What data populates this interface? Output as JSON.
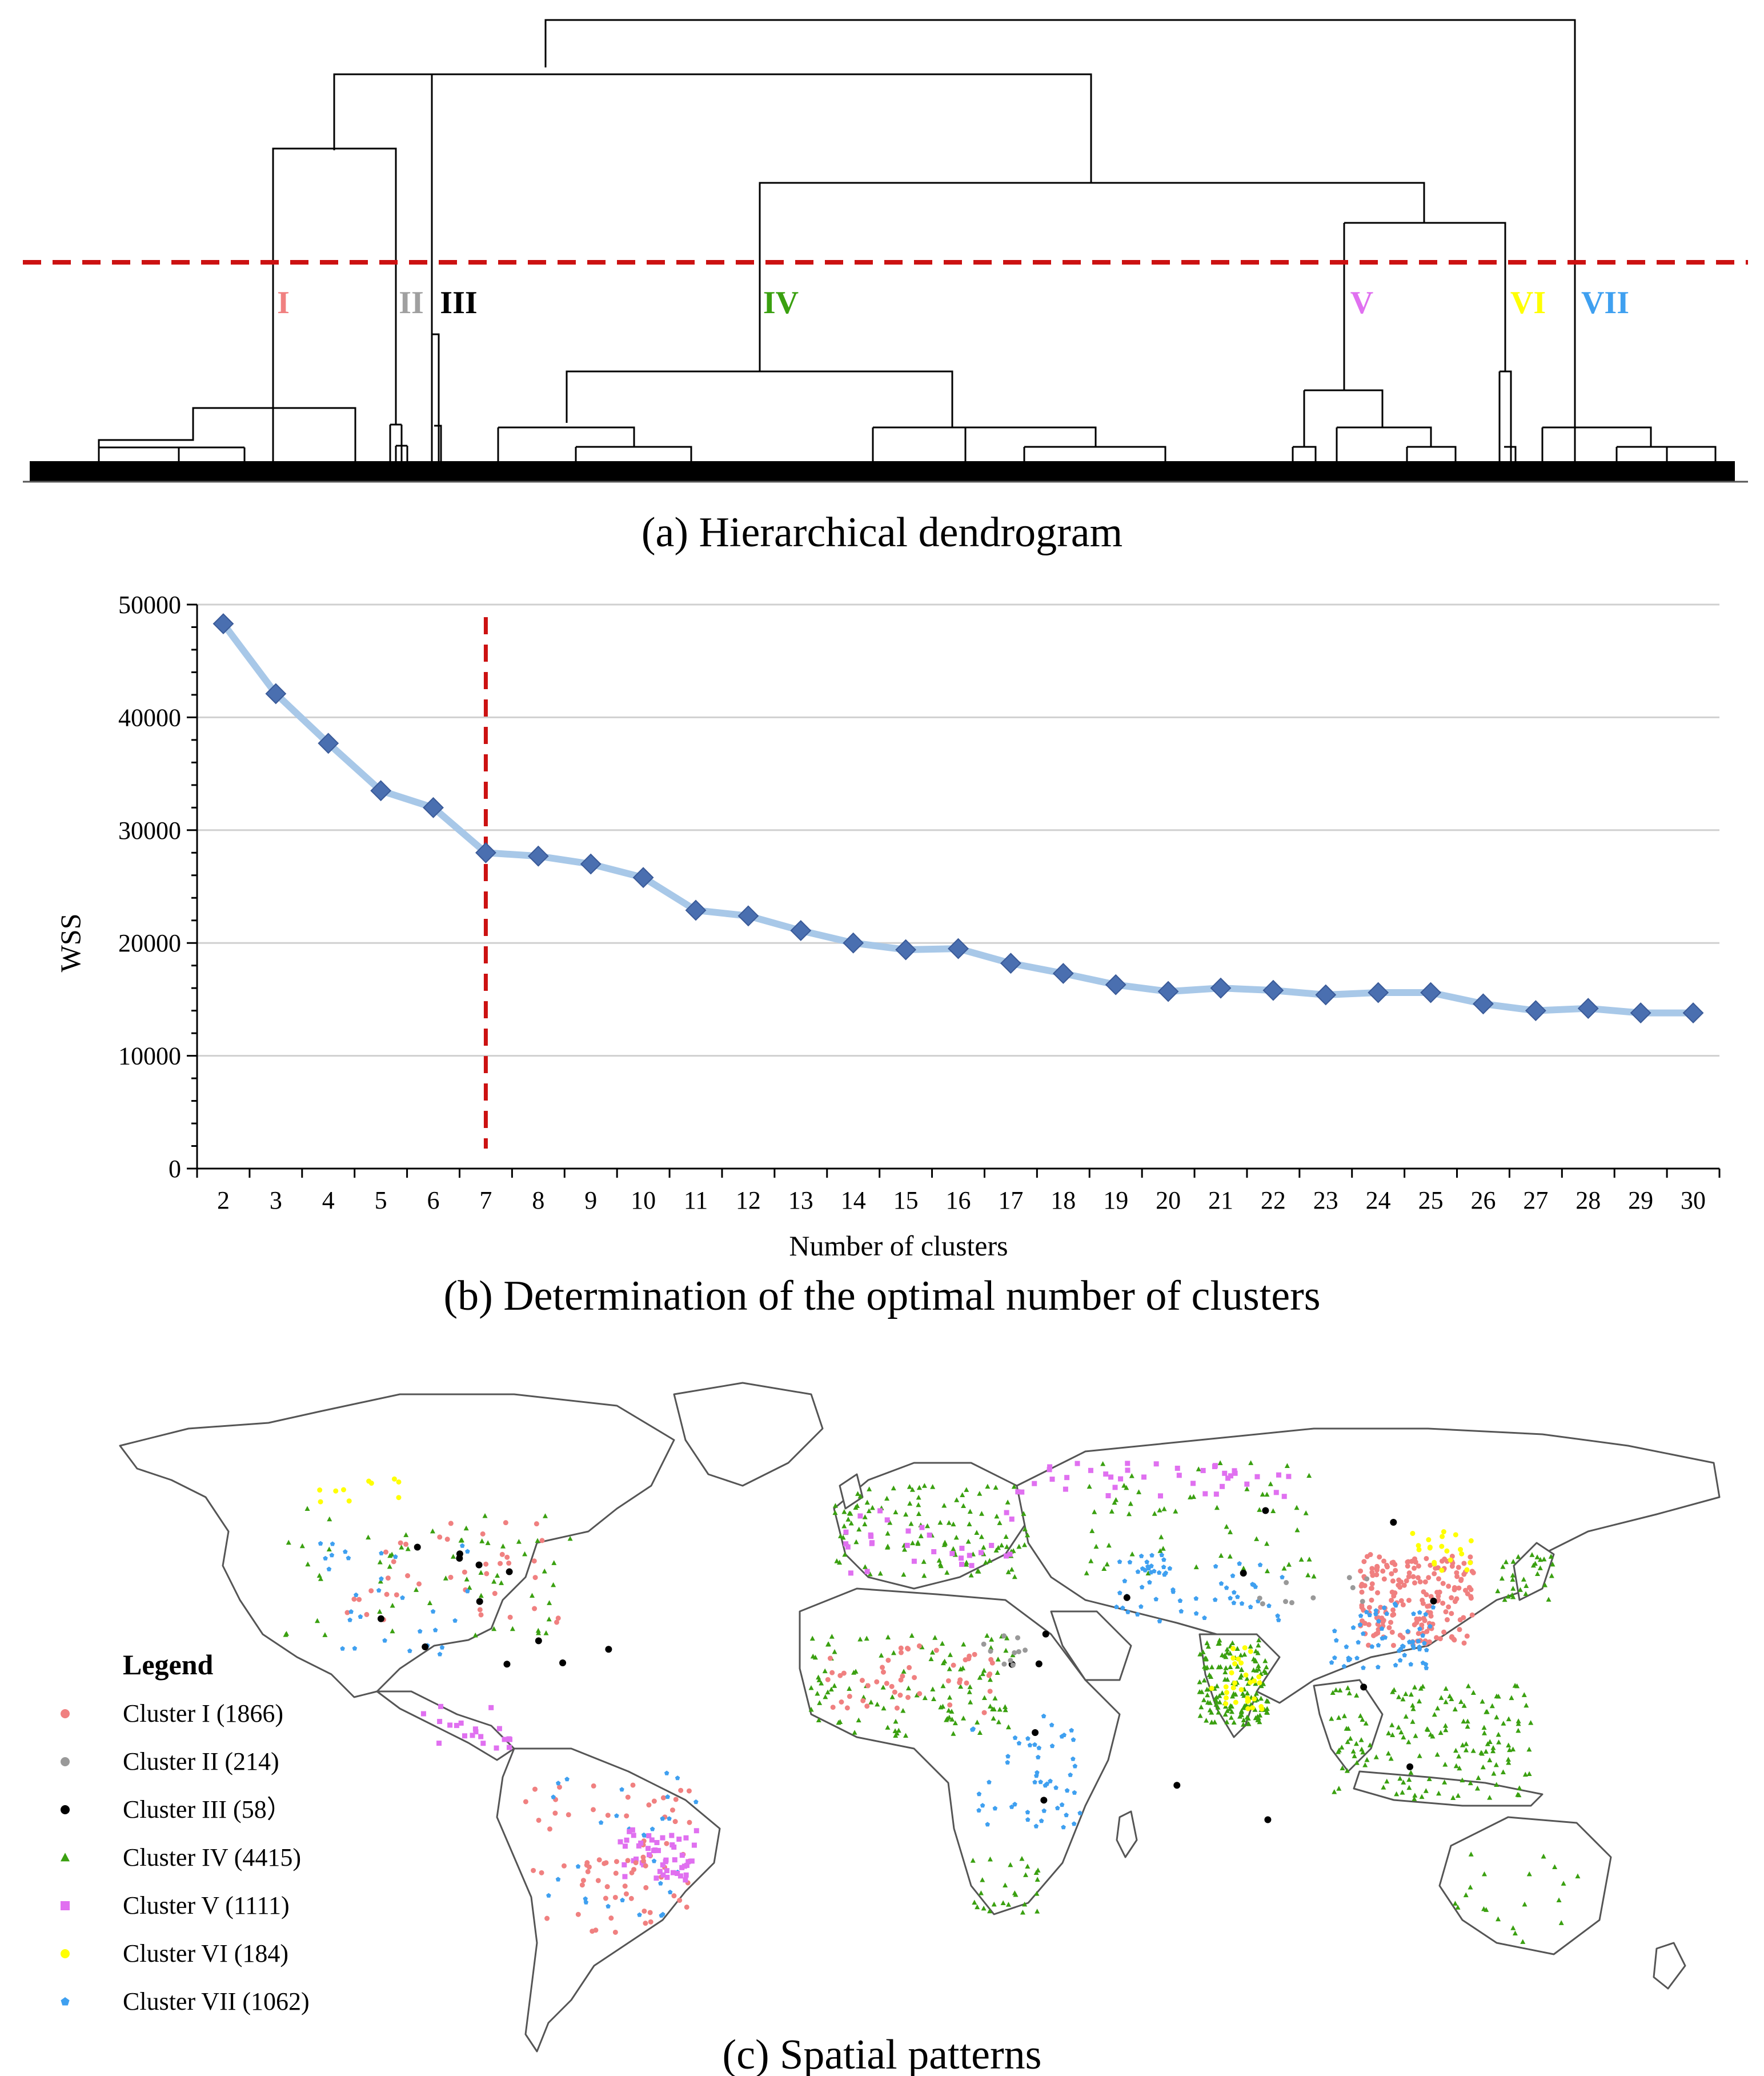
{
  "dendrogram": {
    "caption": "(a) Hierarchical dendrogram",
    "clusters": [
      {
        "label": "I",
        "color": "#f08080"
      },
      {
        "label": "II",
        "color": "#a0a0a0"
      },
      {
        "label": "III",
        "color": "#000000"
      },
      {
        "label": "IV",
        "color": "#3aa010"
      },
      {
        "label": "V",
        "color": "#e070f0"
      },
      {
        "label": "VI",
        "color": "#ffff00"
      },
      {
        "label": "VII",
        "color": "#3fa0f0"
      }
    ],
    "cut_line_color": "#cc1111"
  },
  "chart_data": {
    "type": "line",
    "caption": "(b) Determination of the optimal number of clusters",
    "xlabel": "Number of clusters",
    "ylabel": "WSS",
    "x": [
      2,
      3,
      4,
      5,
      6,
      7,
      8,
      9,
      10,
      11,
      12,
      13,
      14,
      15,
      16,
      17,
      18,
      19,
      20,
      21,
      22,
      23,
      24,
      25,
      26,
      27,
      28,
      29,
      30
    ],
    "series": [
      {
        "values": [
          48300,
          42100,
          37700,
          33500,
          32000,
          28000,
          27700,
          27000,
          25800,
          22900,
          22400,
          21100,
          20000,
          19400,
          19500,
          18200,
          17300,
          16300,
          15700,
          16000,
          15800,
          15400,
          15600,
          15600,
          14600,
          14000,
          14200,
          13800,
          13800
        ],
        "color": "#a8c8e8",
        "marker_color": "#4a6fb0"
      }
    ],
    "ylim": [
      0,
      50000
    ],
    "yticks": [
      0,
      10000,
      20000,
      30000,
      40000,
      50000
    ],
    "ytick_labels": [
      "0",
      "10000",
      "20000",
      "30000",
      "40000",
      "50000"
    ],
    "grid": true,
    "optimal_k": 7,
    "optimal_line_color": "#cc1111"
  },
  "map": {
    "caption": "(c) Spatial patterns",
    "legend_title": "Legend",
    "legend": [
      {
        "label": "Cluster I (1866)",
        "color": "#f08080",
        "shape": "circle"
      },
      {
        "label": "Cluster II (214)",
        "color": "#999999",
        "shape": "circle"
      },
      {
        "label": "Cluster III (58）",
        "color": "#000000",
        "shape": "circle"
      },
      {
        "label": "Cluster IV (4415)",
        "color": "#3aa010",
        "shape": "triangle"
      },
      {
        "label": "Cluster V (1111)",
        "color": "#e070f0",
        "shape": "square"
      },
      {
        "label": "Cluster VI (184)",
        "color": "#ffff00",
        "shape": "circle"
      },
      {
        "label": "Cluster VII (1062)",
        "color": "#3fa0f0",
        "shape": "pentagon"
      }
    ]
  }
}
